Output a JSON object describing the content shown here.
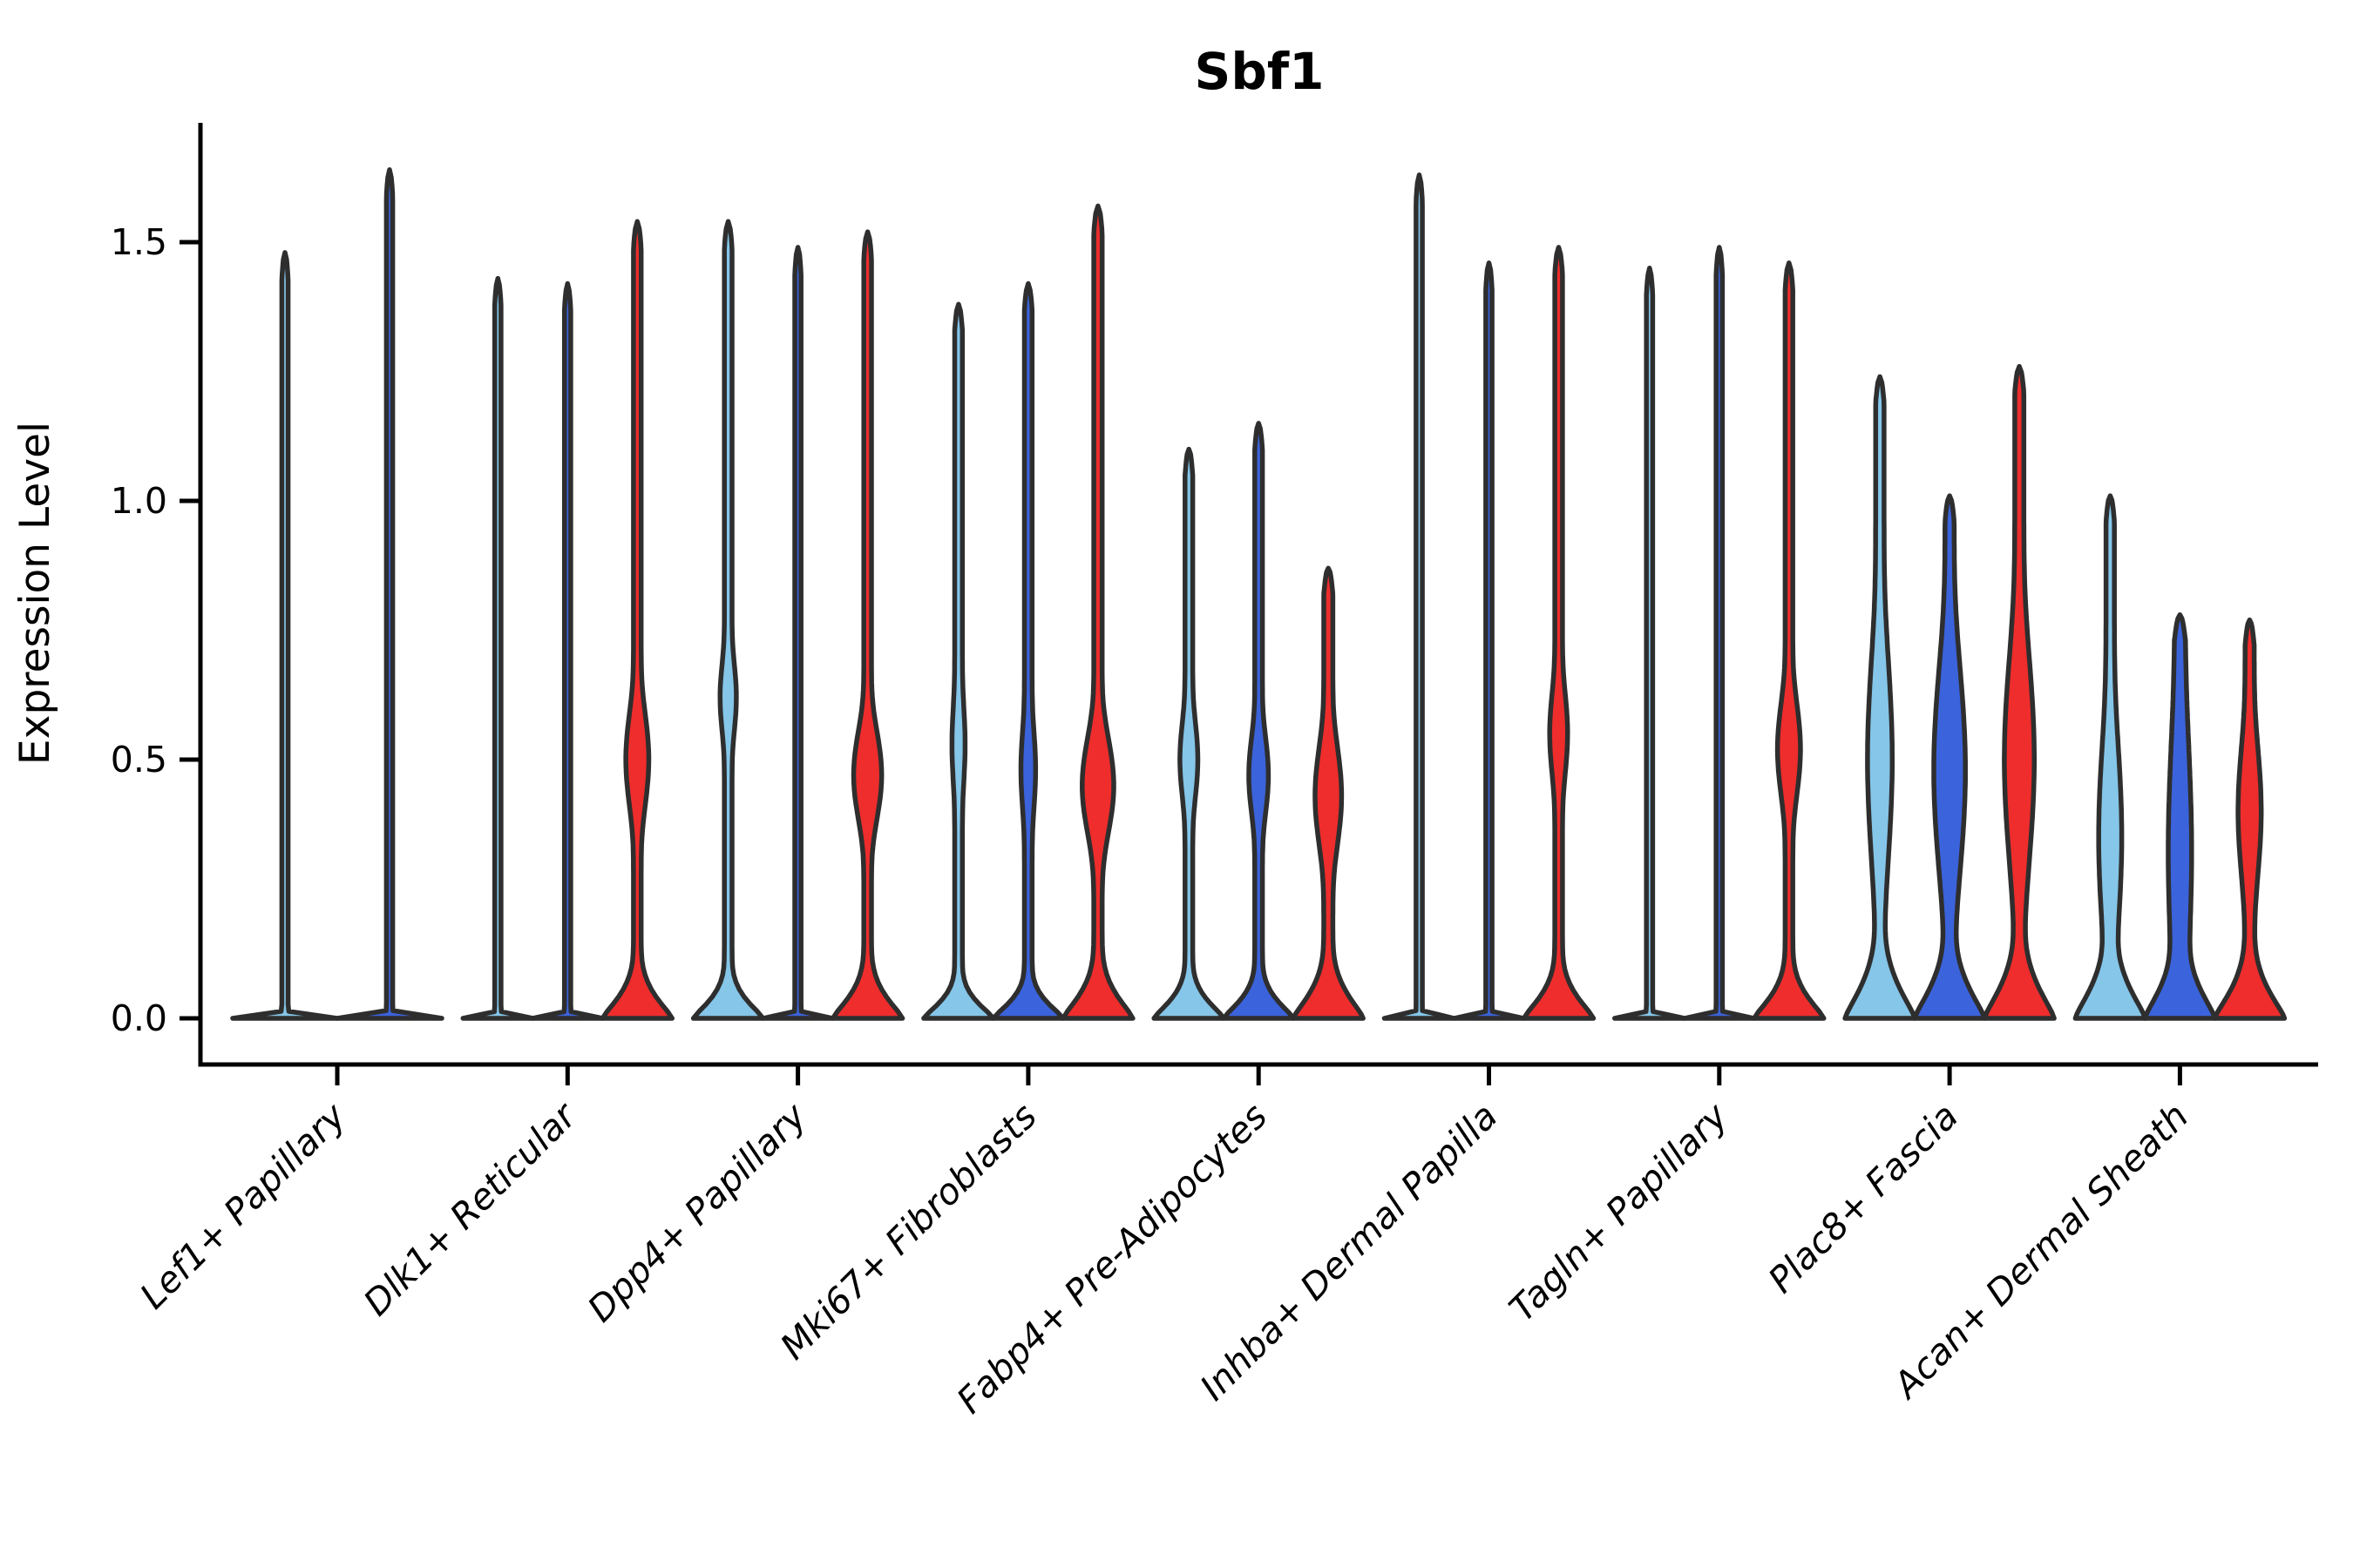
{
  "chart_data": {
    "type": "violin",
    "title": "Sbf1",
    "ylabel": "Expression Level",
    "xlabel": "",
    "ytick_labels": [
      "0.0",
      "0.5",
      "1.0",
      "1.5"
    ],
    "ytick_values": [
      0,
      0.5,
      1.0,
      1.5
    ],
    "ylim": [
      -0.09,
      1.73
    ],
    "grid": false,
    "legend_position": "none",
    "splits": [
      "light_blue",
      "dark_blue",
      "red"
    ],
    "colors": {
      "light_blue": "#85C6E9",
      "dark_blue": "#3B63DB",
      "red": "#EE2D2C",
      "outline": "#2E2E2E",
      "axis": "#000000"
    },
    "categories": [
      "Lef1+ Papillary",
      "Dlk1+ Reticular",
      "Dpp4+ Papillary",
      "Mki67+ Fibroblasts",
      "Fabp4+ Pre-Adipocytes",
      "Inhba+ Dermal Papilla",
      "Tagln+ Papillary",
      "Plac8+ Fascia",
      "Acan+ Dermal Sheath"
    ],
    "groups": [
      {
        "category": "Lef1+ Papillary",
        "violins": [
          {
            "split": "light_blue",
            "max_expression": 1.48,
            "offset": -60,
            "profile": {
              "base_hw": 60,
              "base_s": 0.006,
              "stem_hw": 3.6,
              "bulge": null
            }
          },
          {
            "split": "dark_blue",
            "max_expression": 1.64,
            "offset": 60,
            "profile": {
              "base_hw": 60,
              "base_s": 0.006,
              "stem_hw": 3.6,
              "bulge": null
            }
          }
        ]
      },
      {
        "category": "Dlk1+ Reticular",
        "violins": [
          {
            "split": "light_blue",
            "max_expression": 1.43,
            "offset": -80,
            "profile": {
              "base_hw": 40,
              "base_s": 0.006,
              "stem_hw": 3.6,
              "bulge": null
            }
          },
          {
            "split": "dark_blue",
            "max_expression": 1.42,
            "offset": 0,
            "profile": {
              "base_hw": 40,
              "base_s": 0.006,
              "stem_hw": 3.6,
              "bulge": null
            }
          },
          {
            "split": "red",
            "max_expression": 1.54,
            "offset": 80,
            "profile": {
              "base_hw": 40,
              "base_s": 0.06,
              "stem_hw": 4.4,
              "bulge": {
                "c": 0.5,
                "s": 0.14,
                "hw": 13
              }
            }
          }
        ]
      },
      {
        "category": "Dpp4+ Papillary",
        "violins": [
          {
            "split": "light_blue",
            "max_expression": 1.54,
            "offset": -80,
            "profile": {
              "base_hw": 40,
              "base_s": 0.05,
              "stem_hw": 4.4,
              "bulge": {
                "c": 0.62,
                "s": 0.11,
                "hw": 9
              }
            }
          },
          {
            "split": "dark_blue",
            "max_expression": 1.49,
            "offset": 0,
            "profile": {
              "base_hw": 40,
              "base_s": 0.006,
              "stem_hw": 3.6,
              "bulge": null
            }
          },
          {
            "split": "red",
            "max_expression": 1.52,
            "offset": 80,
            "profile": {
              "base_hw": 40,
              "base_s": 0.06,
              "stem_hw": 4.4,
              "bulge": {
                "c": 0.47,
                "s": 0.13,
                "hw": 16
              }
            }
          }
        ]
      },
      {
        "category": "Mki67+ Fibroblasts",
        "violins": [
          {
            "split": "light_blue",
            "max_expression": 1.38,
            "offset": -80,
            "profile": {
              "base_hw": 40,
              "base_s": 0.045,
              "stem_hw": 4.4,
              "bulge": {
                "c": 0.53,
                "s": 0.13,
                "hw": 7
              }
            }
          },
          {
            "split": "dark_blue",
            "max_expression": 1.42,
            "offset": 0,
            "profile": {
              "base_hw": 40,
              "base_s": 0.045,
              "stem_hw": 4.4,
              "bulge": {
                "c": 0.48,
                "s": 0.13,
                "hw": 8
              }
            }
          },
          {
            "split": "red",
            "max_expression": 1.57,
            "offset": 80,
            "profile": {
              "base_hw": 40,
              "base_s": 0.065,
              "stem_hw": 4.8,
              "bulge": {
                "c": 0.45,
                "s": 0.14,
                "hw": 18
              }
            }
          }
        ]
      },
      {
        "category": "Fabp4+ Pre-Adipocytes",
        "violins": [
          {
            "split": "light_blue",
            "max_expression": 1.1,
            "offset": -80,
            "profile": {
              "base_hw": 40,
              "base_s": 0.05,
              "stem_hw": 4.4,
              "bulge": {
                "c": 0.5,
                "s": 0.12,
                "hw": 10
              }
            }
          },
          {
            "split": "dark_blue",
            "max_expression": 1.15,
            "offset": 0,
            "profile": {
              "base_hw": 40,
              "base_s": 0.05,
              "stem_hw": 4.4,
              "bulge": {
                "c": 0.47,
                "s": 0.12,
                "hw": 11
              }
            }
          },
          {
            "split": "red",
            "max_expression": 0.87,
            "offset": 80,
            "profile": {
              "base_hw": 40,
              "base_s": 0.07,
              "stem_hw": 5.2,
              "bulge": {
                "c": 0.43,
                "s": 0.15,
                "hw": 15
              }
            }
          }
        ]
      },
      {
        "category": "Inhba+ Dermal Papilla",
        "violins": [
          {
            "split": "light_blue",
            "max_expression": 1.63,
            "offset": -80,
            "profile": {
              "base_hw": 40,
              "base_s": 0.006,
              "stem_hw": 3.6,
              "bulge": null
            }
          },
          {
            "split": "dark_blue",
            "max_expression": 1.46,
            "offset": 0,
            "profile": {
              "base_hw": 40,
              "base_s": 0.006,
              "stem_hw": 3.6,
              "bulge": null
            }
          },
          {
            "split": "red",
            "max_expression": 1.49,
            "offset": 80,
            "profile": {
              "base_hw": 40,
              "base_s": 0.06,
              "stem_hw": 4.4,
              "bulge": {
                "c": 0.55,
                "s": 0.13,
                "hw": 10
              }
            }
          }
        ]
      },
      {
        "category": "Tagln+ Papillary",
        "violins": [
          {
            "split": "light_blue",
            "max_expression": 1.45,
            "offset": -80,
            "profile": {
              "base_hw": 40,
              "base_s": 0.006,
              "stem_hw": 3.6,
              "bulge": null
            }
          },
          {
            "split": "dark_blue",
            "max_expression": 1.49,
            "offset": 0,
            "profile": {
              "base_hw": 40,
              "base_s": 0.006,
              "stem_hw": 3.6,
              "bulge": null
            }
          },
          {
            "split": "red",
            "max_expression": 1.46,
            "offset": 80,
            "profile": {
              "base_hw": 40,
              "base_s": 0.06,
              "stem_hw": 4.4,
              "bulge": {
                "c": 0.52,
                "s": 0.14,
                "hw": 13
              }
            }
          }
        ]
      },
      {
        "category": "Plac8+ Fascia",
        "violins": [
          {
            "split": "light_blue",
            "max_expression": 1.24,
            "offset": -80,
            "profile": {
              "base_hw": 40,
              "base_s": 0.09,
              "stem_hw": 4.8,
              "bulge": {
                "c": 0.5,
                "s": 0.3,
                "hw": 14
              }
            }
          },
          {
            "split": "dark_blue",
            "max_expression": 1.01,
            "offset": 0,
            "profile": {
              "base_hw": 40,
              "base_s": 0.09,
              "stem_hw": 5.2,
              "bulge": {
                "c": 0.48,
                "s": 0.3,
                "hw": 18
              }
            }
          },
          {
            "split": "red",
            "max_expression": 1.26,
            "offset": 80,
            "profile": {
              "base_hw": 40,
              "base_s": 0.09,
              "stem_hw": 5.2,
              "bulge": {
                "c": 0.5,
                "s": 0.3,
                "hw": 17
              }
            }
          }
        ]
      },
      {
        "category": "Acan+ Dermal Sheath",
        "violins": [
          {
            "split": "light_blue",
            "max_expression": 1.01,
            "offset": -80,
            "profile": {
              "base_hw": 40,
              "base_s": 0.09,
              "stem_hw": 4.8,
              "bulge": {
                "c": 0.35,
                "s": 0.28,
                "hw": 13
              }
            }
          },
          {
            "split": "dark_blue",
            "max_expression": 0.78,
            "offset": 0,
            "profile": {
              "base_hw": 40,
              "base_s": 0.09,
              "stem_hw": 6.0,
              "bulge": {
                "c": 0.32,
                "s": 0.36,
                "hw": 13
              }
            }
          },
          {
            "split": "red",
            "max_expression": 0.77,
            "offset": 80,
            "profile": {
              "base_hw": 40,
              "base_s": 0.08,
              "stem_hw": 5.2,
              "bulge": {
                "c": 0.4,
                "s": 0.2,
                "hw": 13
              }
            }
          }
        ]
      }
    ]
  }
}
